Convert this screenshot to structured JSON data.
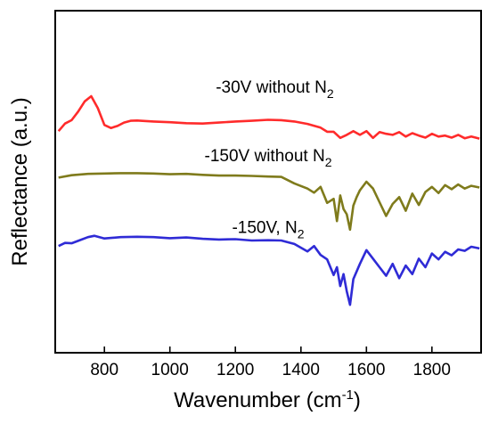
{
  "chart_data": {
    "type": "line",
    "xlabel": "Wavenumber (cm",
    "xlabel_superscript": "-1",
    "xlabel_suffix": ")",
    "ylabel": "Reflectance (a.u.)",
    "xlim": [
      650,
      1950
    ],
    "ylim": [
      0,
      100
    ],
    "x_ticks": [
      800,
      1000,
      1200,
      1400,
      1600,
      1800
    ],
    "y_ticks_shown": false,
    "grid": false,
    "legend": "none",
    "series": [
      {
        "label_main": "-30V without N",
        "label_sub": "2",
        "color": "#ff2b2b",
        "label_at": [
          1320,
          76
        ],
        "x": [
          660,
          680,
          700,
          720,
          740,
          760,
          780,
          800,
          820,
          840,
          860,
          880,
          900,
          950,
          1000,
          1050,
          1100,
          1150,
          1200,
          1250,
          1300,
          1340,
          1380,
          1420,
          1460,
          1480,
          1500,
          1520,
          1540,
          1560,
          1580,
          1600,
          1620,
          1640,
          1660,
          1680,
          1700,
          1720,
          1740,
          1760,
          1780,
          1800,
          1820,
          1840,
          1860,
          1880,
          1900,
          1920,
          1945
        ],
        "y": [
          64.8,
          67.0,
          68.0,
          70.5,
          73.5,
          75.0,
          71.5,
          66.6,
          65.7,
          66.3,
          67.3,
          67.8,
          67.9,
          67.6,
          67.4,
          67.1,
          67.0,
          67.3,
          67.6,
          67.8,
          68.1,
          68.0,
          67.6,
          66.9,
          65.8,
          64.6,
          64.6,
          62.8,
          63.7,
          64.8,
          63.7,
          64.8,
          62.8,
          64.5,
          64.0,
          63.7,
          64.5,
          63.2,
          64.2,
          63.5,
          62.9,
          64.0,
          63.2,
          63.5,
          62.9,
          63.7,
          62.7,
          63.2,
          62.6
        ]
      },
      {
        "label_main": "-150V without N",
        "label_sub": "2",
        "color": "#7f7b1c",
        "label_at": [
          1300,
          56
        ],
        "x": [
          660,
          700,
          750,
          800,
          850,
          900,
          950,
          1000,
          1050,
          1100,
          1150,
          1200,
          1250,
          1300,
          1340,
          1380,
          1420,
          1440,
          1460,
          1480,
          1500,
          1510,
          1520,
          1530,
          1540,
          1550,
          1560,
          1570,
          1580,
          1600,
          1620,
          1640,
          1660,
          1680,
          1700,
          1720,
          1740,
          1760,
          1780,
          1800,
          1820,
          1840,
          1860,
          1880,
          1900,
          1920,
          1945
        ],
        "y": [
          51.2,
          51.9,
          52.3,
          52.4,
          52.5,
          52.5,
          52.4,
          52.2,
          52.3,
          52.0,
          51.8,
          51.8,
          51.7,
          51.5,
          51.4,
          49.5,
          48.0,
          46.8,
          48.5,
          43.8,
          45.0,
          38.5,
          46.0,
          42.0,
          40.5,
          36.0,
          43.0,
          45.5,
          47.5,
          50.0,
          48.0,
          44.0,
          40.0,
          43.5,
          45.5,
          41.5,
          46.5,
          43.2,
          47.0,
          48.5,
          46.7,
          49.0,
          47.8,
          49.2,
          48.0,
          48.8,
          48.3
        ]
      },
      {
        "label_main": "-150V, N",
        "label_sub": "2",
        "color": "#2f2bd6",
        "label_at": [
          1300,
          35
        ],
        "x": [
          660,
          680,
          700,
          720,
          750,
          770,
          800,
          850,
          900,
          950,
          1000,
          1050,
          1100,
          1150,
          1200,
          1250,
          1300,
          1340,
          1380,
          1420,
          1440,
          1460,
          1480,
          1500,
          1510,
          1520,
          1530,
          1540,
          1550,
          1560,
          1580,
          1600,
          1620,
          1640,
          1660,
          1680,
          1700,
          1720,
          1740,
          1760,
          1780,
          1800,
          1820,
          1840,
          1860,
          1880,
          1900,
          1920,
          1945
        ],
        "y": [
          31.2,
          32.1,
          32.0,
          32.7,
          33.8,
          34.2,
          33.4,
          33.8,
          33.9,
          33.8,
          33.5,
          33.7,
          33.3,
          33.1,
          33.2,
          32.8,
          32.9,
          32.8,
          31.8,
          29.6,
          31.2,
          28.6,
          27.3,
          22.7,
          25.0,
          19.5,
          23.0,
          18.0,
          14.0,
          21.5,
          26.0,
          30.0,
          27.5,
          25.0,
          22.5,
          26.0,
          21.8,
          25.5,
          23.0,
          27.5,
          25.0,
          29.0,
          27.3,
          29.5,
          28.5,
          30.2,
          29.8,
          31.0,
          30.5
        ]
      }
    ]
  }
}
